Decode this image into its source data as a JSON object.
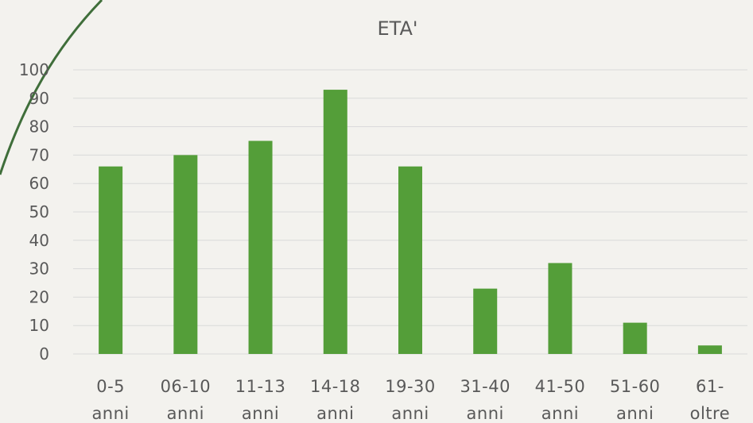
{
  "chart_data": {
    "type": "bar",
    "title": "ETA'",
    "categories": [
      [
        "0-5",
        "anni"
      ],
      [
        "06-10",
        "anni"
      ],
      [
        "11-13",
        "anni"
      ],
      [
        "14-18",
        "anni"
      ],
      [
        "19-30",
        "anni"
      ],
      [
        "31-40",
        "anni"
      ],
      [
        "41-50",
        "anni"
      ],
      [
        "51-60",
        "anni"
      ],
      [
        "61-",
        "oltre"
      ]
    ],
    "values": [
      66,
      70,
      75,
      93,
      66,
      23,
      32,
      11,
      3
    ],
    "xlabel": "",
    "ylabel": "",
    "ylim": [
      0,
      100
    ],
    "yticks": [
      "0",
      "10",
      "20",
      "30",
      "40",
      "50",
      "60",
      "70",
      "80",
      "90",
      "100"
    ],
    "grid": true,
    "bar_color": "#549e39",
    "legend": "none"
  }
}
